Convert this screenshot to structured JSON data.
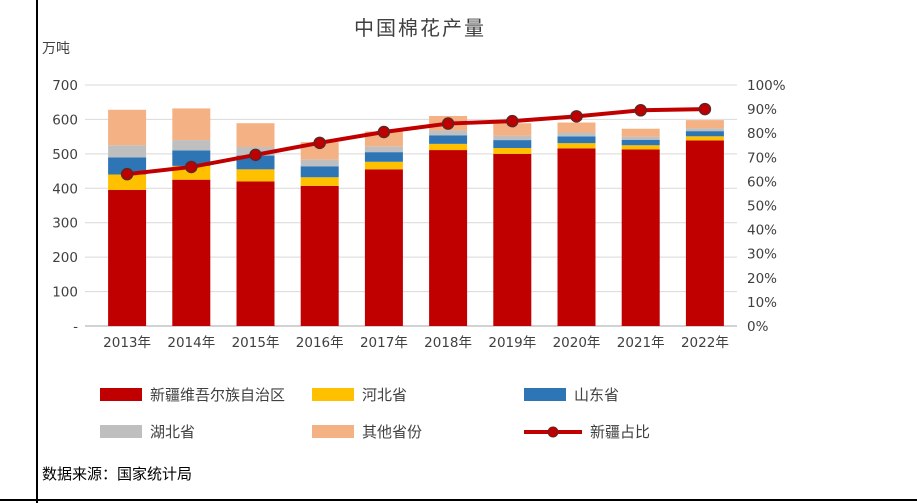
{
  "header": {
    "title": "中国棉花产量"
  },
  "footer": {
    "source": "数据来源：国家统计局"
  },
  "colors": {
    "grid": "#D9D9D9",
    "axis": "#A6A6A6",
    "text": "#404040"
  },
  "chart_data": {
    "type": "bar",
    "subtype": "stacked-bar-with-line",
    "title": "中国棉花产量",
    "unit_label": "万吨",
    "categories": [
      "2013年",
      "2014年",
      "2015年",
      "2016年",
      "2017年",
      "2018年",
      "2019年",
      "2020年",
      "2021年",
      "2022年"
    ],
    "series": [
      {
        "name": "新疆维吾尔族自治区",
        "type": "bar",
        "color": "#C00000",
        "values": [
          395,
          425,
          420,
          407,
          455,
          511,
          500,
          516,
          513,
          539
        ]
      },
      {
        "name": "河北省",
        "type": "bar",
        "color": "#FFC000",
        "values": [
          45,
          40,
          35,
          25,
          22,
          18,
          17,
          15,
          12,
          12
        ]
      },
      {
        "name": "山东省",
        "type": "bar",
        "color": "#2E75B6",
        "values": [
          50,
          45,
          40,
          32,
          28,
          25,
          23,
          20,
          16,
          15
        ]
      },
      {
        "name": "湖北省",
        "type": "bar",
        "color": "#BFBFBF",
        "values": [
          35,
          30,
          25,
          20,
          17,
          14,
          13,
          11,
          9,
          8
        ]
      },
      {
        "name": "其他省份",
        "type": "bar",
        "color": "#F4B183",
        "values": [
          103,
          92,
          69,
          50,
          43,
          42,
          36,
          29,
          23,
          24
        ]
      }
    ],
    "line_series": {
      "name": "新疆占比",
      "axis": "right",
      "color": "#C00000",
      "values": [
        63,
        66,
        71,
        76,
        80.5,
        84,
        85,
        87,
        89.5,
        90
      ]
    },
    "y_left": {
      "label": "万吨",
      "min": 0,
      "max": 700,
      "step": 100,
      "tick_labels": [
        "-",
        "100",
        "200",
        "300",
        "400",
        "500",
        "600",
        "700"
      ]
    },
    "y_right": {
      "min": 0,
      "max": 100,
      "step": 10,
      "tick_labels": [
        "0%",
        "10%",
        "20%",
        "30%",
        "40%",
        "50%",
        "60%",
        "70%",
        "80%",
        "90%",
        "100%"
      ]
    },
    "grid": true,
    "legend_position": "bottom",
    "legend": [
      {
        "label": "新疆维吾尔族自治区",
        "color": "#C00000",
        "type": "bar"
      },
      {
        "label": "河北省",
        "color": "#FFC000",
        "type": "bar"
      },
      {
        "label": "山东省",
        "color": "#2E75B6",
        "type": "bar"
      },
      {
        "label": "湖北省",
        "color": "#BFBFBF",
        "type": "bar"
      },
      {
        "label": "其他省份",
        "color": "#F4B183",
        "type": "bar"
      },
      {
        "label": "新疆占比",
        "color": "#C00000",
        "type": "line"
      }
    ]
  }
}
